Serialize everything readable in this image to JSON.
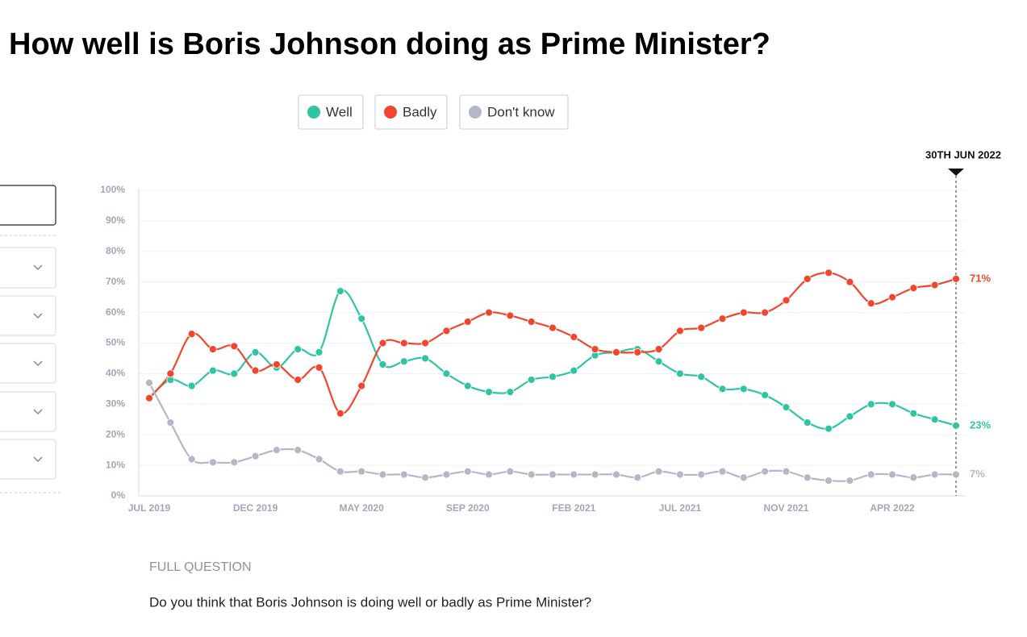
{
  "chart_data": {
    "type": "line",
    "title": "How well is Boris Johnson doing as Prime Minister?",
    "categories": [
      "JUL 2019",
      null,
      null,
      null,
      null,
      "DEC 2019",
      null,
      null,
      null,
      null,
      "MAY 2020",
      null,
      null,
      null,
      null,
      "SEP 2020",
      null,
      null,
      null,
      null,
      "FEB 2021",
      null,
      null,
      null,
      null,
      "JUL 2021",
      null,
      null,
      null,
      null,
      "NOV 2021",
      null,
      null,
      null,
      null,
      "APR 2022",
      null,
      null,
      null
    ],
    "series": [
      {
        "name": "Well",
        "color": "#30c5a2",
        "end_label": "23%",
        "values": [
          32,
          38,
          36,
          41,
          40,
          47,
          42,
          48,
          47,
          67,
          58,
          43,
          44,
          45,
          40,
          36,
          34,
          34,
          38,
          39,
          41,
          46,
          47,
          48,
          44,
          40,
          39,
          35,
          35,
          33,
          29,
          24,
          22,
          26,
          30,
          30,
          27,
          25,
          23
        ]
      },
      {
        "name": "Badly",
        "color": "#f2452d",
        "end_label": "71%",
        "values": [
          32,
          40,
          53,
          48,
          49,
          41,
          43,
          38,
          42,
          27,
          36,
          50,
          50,
          50,
          54,
          57,
          60,
          59,
          57,
          55,
          52,
          48,
          47,
          47,
          48,
          54,
          55,
          58,
          60,
          60,
          64,
          71,
          73,
          70,
          63,
          65,
          68,
          69,
          71
        ]
      },
      {
        "name": "Don't know",
        "color": "#b3b8c7",
        "end_label": "7%",
        "values": [
          37,
          24,
          12,
          11,
          11,
          13,
          15,
          15,
          12,
          8,
          8,
          7,
          7,
          6,
          7,
          8,
          7,
          8,
          7,
          7,
          7,
          7,
          7,
          6,
          8,
          7,
          7,
          8,
          6,
          8,
          8,
          6,
          5,
          5,
          7,
          7,
          6,
          7,
          7
        ]
      }
    ],
    "ylim": [
      0,
      100
    ],
    "yticks": [
      {
        "value": 0,
        "label": "0%"
      },
      {
        "value": 10,
        "label": "10%"
      },
      {
        "value": 20,
        "label": "20%"
      },
      {
        "value": 30,
        "label": "30%"
      },
      {
        "value": 40,
        "label": "40%"
      },
      {
        "value": 50,
        "label": "50%"
      },
      {
        "value": 60,
        "label": "60%"
      },
      {
        "value": 70,
        "label": "70%"
      },
      {
        "value": 80,
        "label": "80%"
      },
      {
        "value": 90,
        "label": "90%"
      },
      {
        "value": 100,
        "label": "100%"
      }
    ],
    "grid": true,
    "annotation": "30TH JUN 2022",
    "full_question_label": "FULL QUESTION",
    "full_question": "Do you think that Boris Johnson is doing well or badly as Prime Minister?"
  }
}
